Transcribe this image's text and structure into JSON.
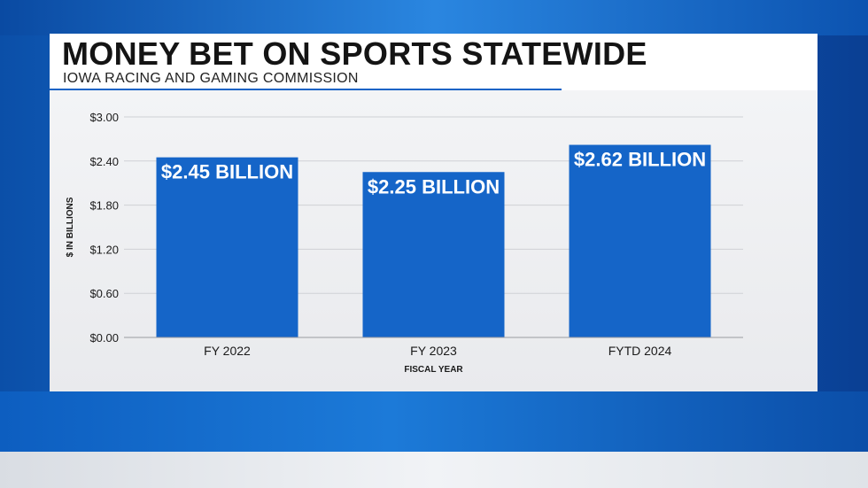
{
  "header": {
    "title": "MONEY BET ON SPORTS STATEWIDE",
    "subtitle": "IOWA RACING AND GAMING COMMISSION"
  },
  "colors": {
    "bar": "#1565c8",
    "bar_label": "#ffffff",
    "text": "#1a1a1a",
    "grid": "#cfd1d5"
  },
  "chart_data": {
    "type": "bar",
    "title": "MONEY BET ON SPORTS STATEWIDE",
    "subtitle": "IOWA RACING AND GAMING COMMISSION",
    "categories": [
      "FY 2022",
      "FY 2023",
      "FYTD 2024"
    ],
    "values": [
      2.45,
      2.25,
      2.62
    ],
    "data_labels": [
      "$2.45 BILLION",
      "$2.25 BILLION",
      "$2.62 BILLION"
    ],
    "xlabel": "FISCAL YEAR",
    "ylabel": "$ IN BILLIONS",
    "ylim": [
      0,
      3
    ],
    "yticks": [
      0,
      0.6,
      1.2,
      1.8,
      2.4,
      3.0
    ],
    "ytick_labels": [
      "$0.00",
      "$0.60",
      "$1.20",
      "$1.80",
      "$2.40",
      "$3.00"
    ],
    "grid": true,
    "legend": "none"
  }
}
